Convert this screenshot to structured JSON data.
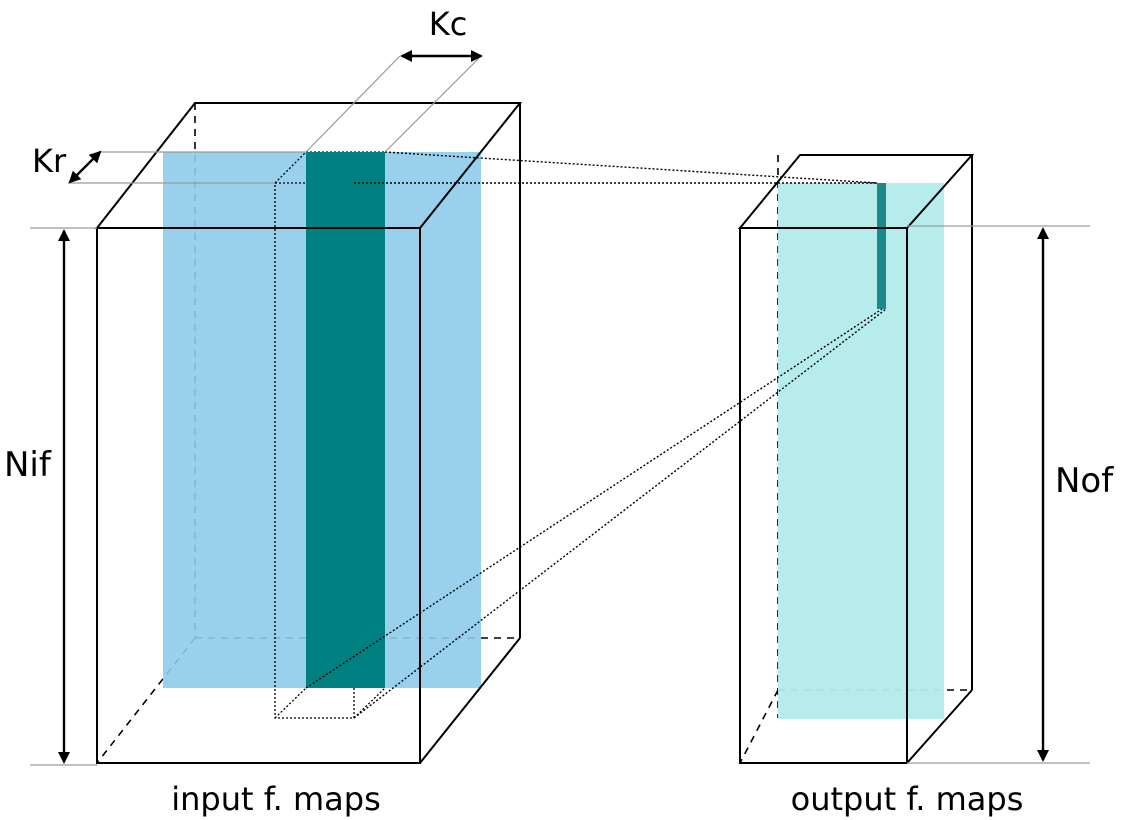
{
  "labels": {
    "kc": "Kc",
    "kr": "Kr",
    "nif": "Nif",
    "nof": "Nof",
    "input_caption": "input f. maps",
    "output_caption": "output f. maps"
  },
  "colors": {
    "input_plane": "#8ecbea",
    "kernel_column": "#008080",
    "output_plane": "#b3ebeb",
    "output_column": "#1a8a8a",
    "stroke": "#000000",
    "guide": "#9a9a9a"
  }
}
